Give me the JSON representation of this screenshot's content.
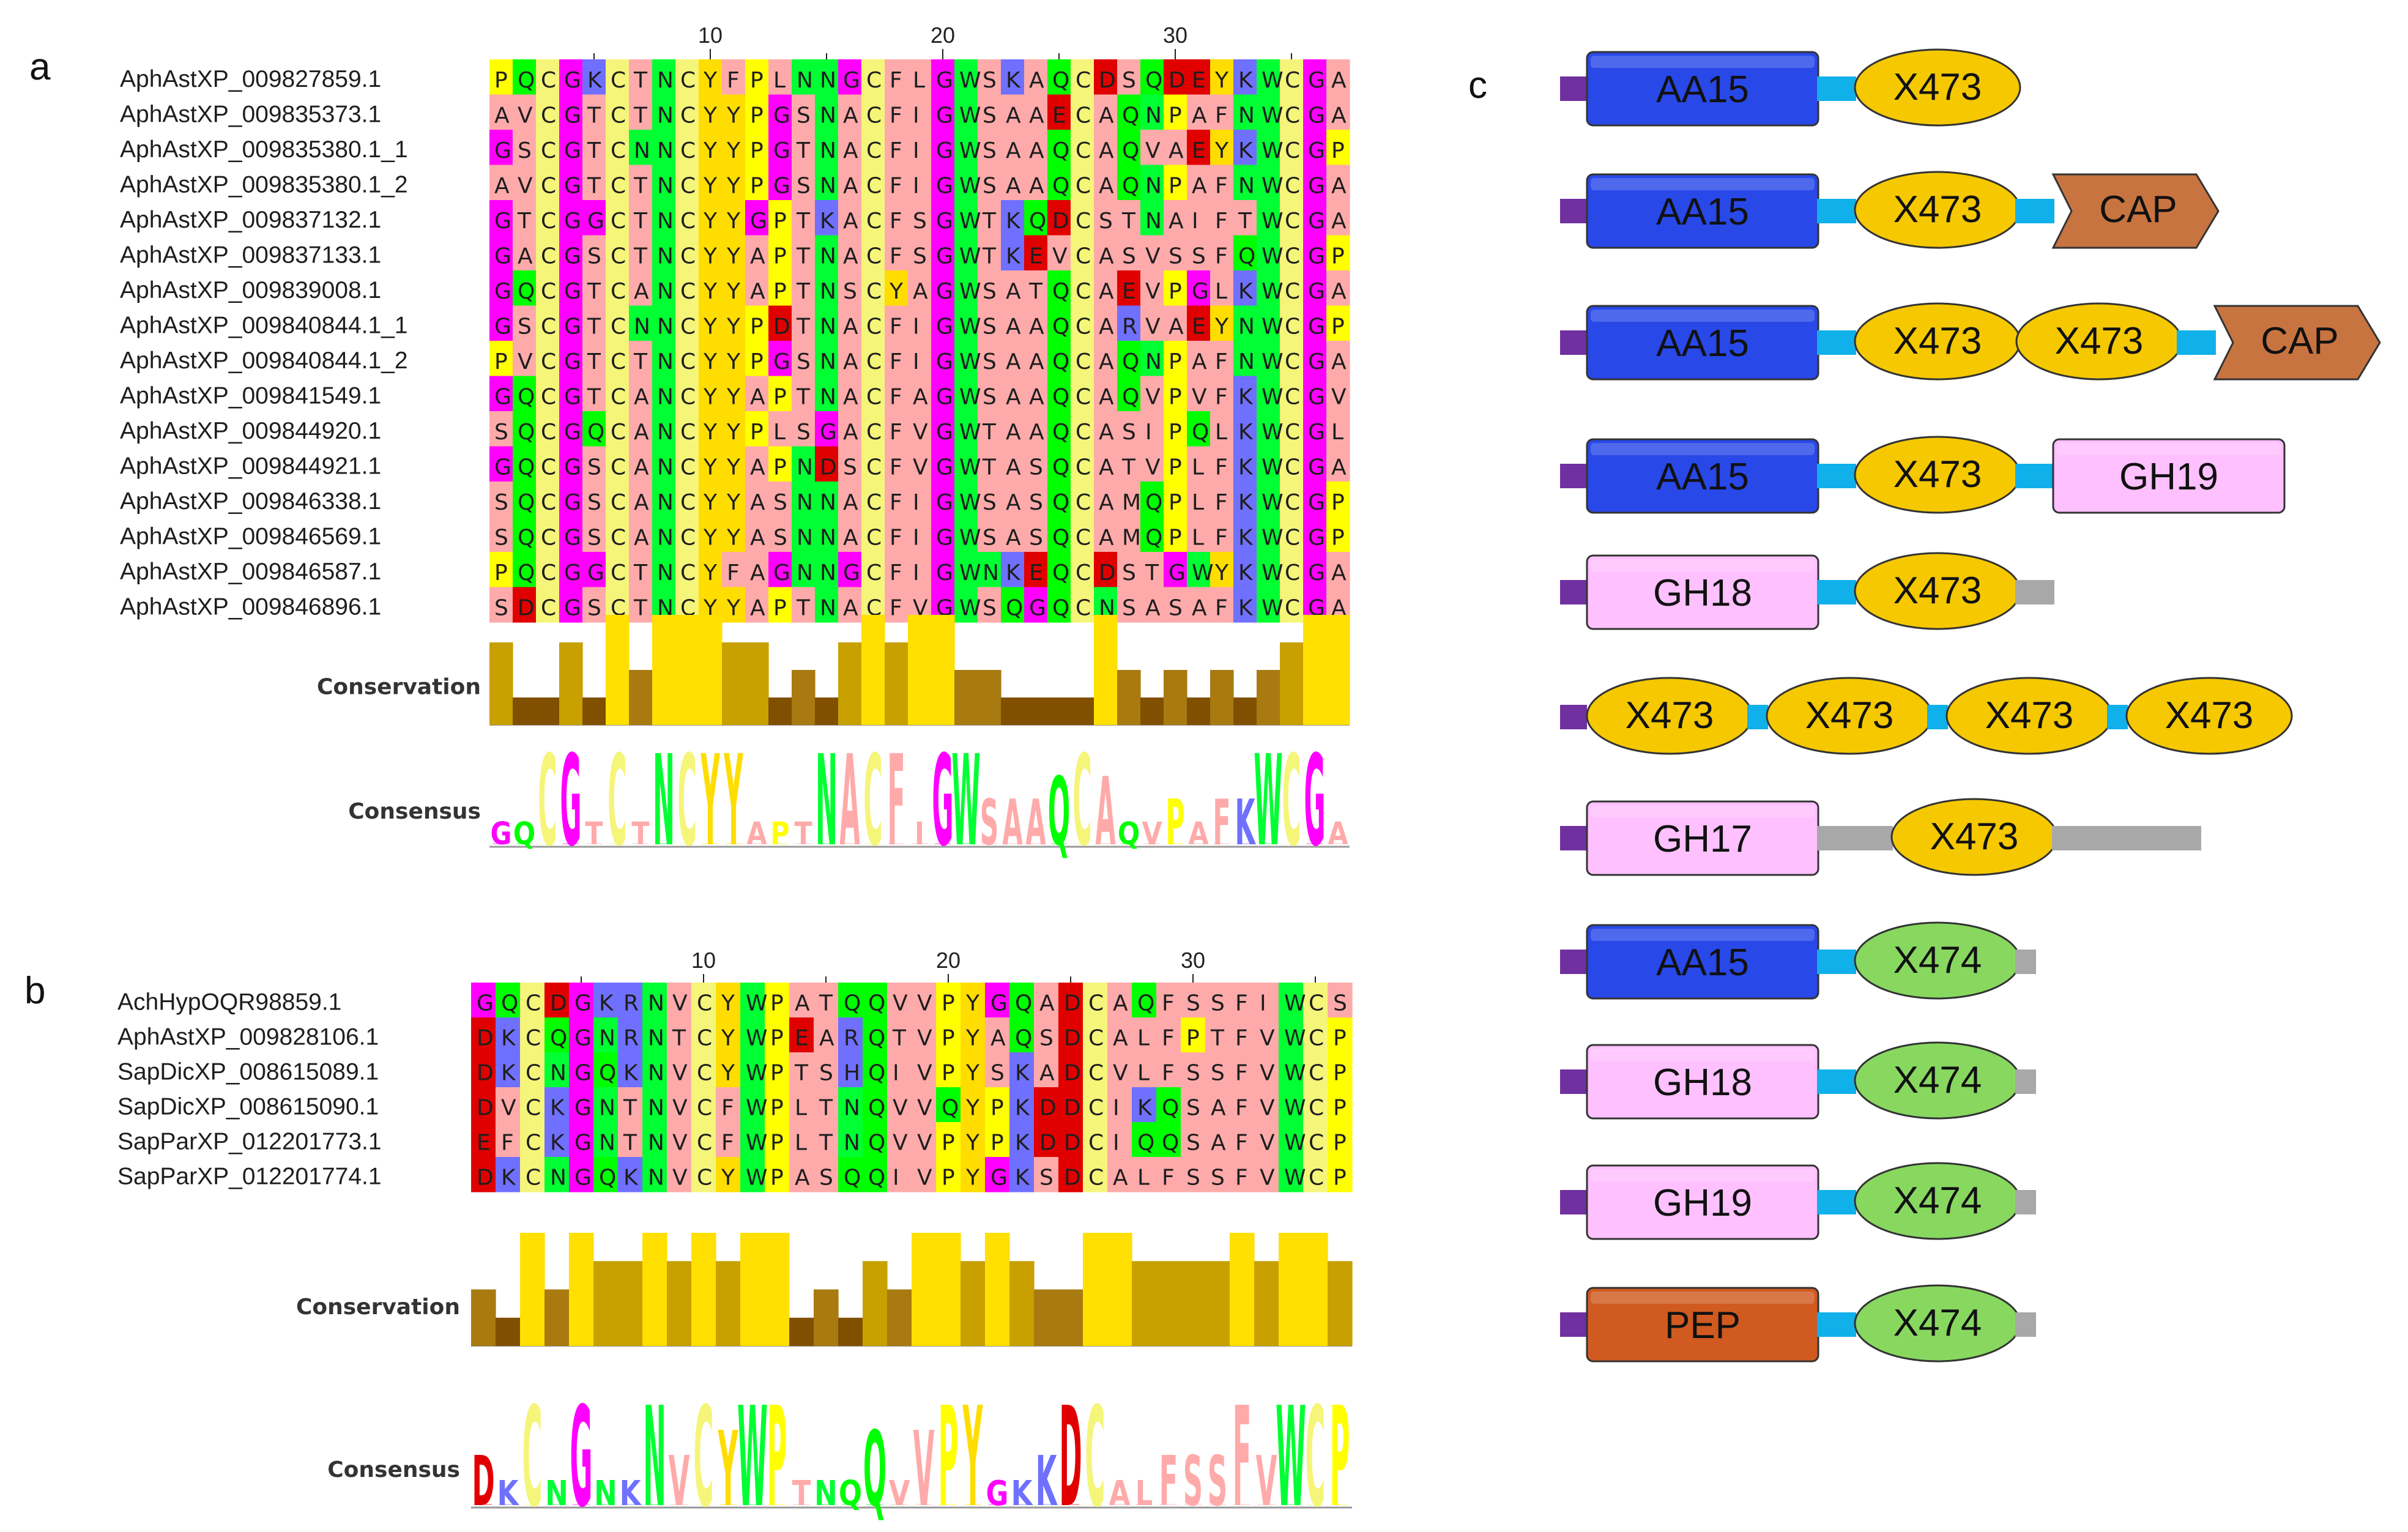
{
  "colors": {
    "G": "#ff00ff",
    "P": "#ffff00",
    "Q": "#00ff00",
    "C": "#f5f57a",
    "K": "#7070ff",
    "T": "#ffaaaa",
    "N": "#00ff33",
    "Y": "#ffdd00",
    "F": "#ffaaaa",
    "L": "#ffaaaa",
    "S": "#ffaaaa",
    "A": "#ffaaaa",
    "D": "#e00000",
    "E": "#e00000",
    "W": "#00ff33",
    "V": "#ffaaaa",
    "I": "#ffaaaa",
    "R": "#7070ff",
    "H": "#7070ff",
    "M": "#ffaaaa",
    "cons_high": "#ffe000",
    "cons_mid": "#c8a000",
    "cons_low": "#805000",
    "AA15": "#2848e8",
    "X473": "#f5c800",
    "CAP": "#c87440",
    "GH19": "#ffc0ff",
    "GH18": "#ffc0ff",
    "GH17": "#ffc0ff",
    "X474": "#88d860",
    "PEP": "#d05a20",
    "linker": "#10b0ea",
    "tail": "#a8a8a8",
    "signal": "#7030a0"
  },
  "panels": {
    "a": {
      "label": "a",
      "ticks": [
        {
          "pos": 10,
          "label": "10"
        },
        {
          "pos": 20,
          "label": "20"
        },
        {
          "pos": 30,
          "label": "30"
        }
      ],
      "sequences": [
        {
          "name": "AphAstXP_009827859.1",
          "seq": "PQCGKCTNCYFPLNNGCFLGWSKAQCDSQDEYKWCGA"
        },
        {
          "name": "AphAstXP_009835373.1",
          "seq": "AVCGTCTNCYYPGSNACFIGWSAAECAQNPAFNWCGA"
        },
        {
          "name": "AphAstXP_009835380.1_1",
          "seq": "GSCGTCNNCYYPGTNACFIGWSAAQCAQVAEYKWCGP"
        },
        {
          "name": "AphAstXP_009835380.1_2",
          "seq": "AVCGTCTNCYYPGSNACFIGWSAAQCAQNPAFNWCGA"
        },
        {
          "name": "AphAstXP_009837132.1",
          "seq": "GTCGGCTNCYYGPTKACFSGWTKQDCSTNAIFTWCGA"
        },
        {
          "name": "AphAstXP_009837133.1",
          "seq": "GACGSCTNCYYAPTNACFSGWTKEVCASVSSFQWCGP"
        },
        {
          "name": "AphAstXP_009839008.1",
          "seq": "GQCGTCANCYYAPTNSCYAGWSATQCAEVPGLKWCGA"
        },
        {
          "name": "AphAstXP_009840844.1_1",
          "seq": "GSCGTCNNCYYPDTNACFIGWSAAQCARVAEYNWCGP"
        },
        {
          "name": "AphAstXP_009840844.1_2",
          "seq": "PVCGTCTNCYYPGSNACFIGWSAAQCAQNPAFNWCGA"
        },
        {
          "name": "AphAstXP_009841549.1",
          "seq": "GQCGTCANCYYAPTNACFAGWSAAQCAQVPVFKWCGV"
        },
        {
          "name": "AphAstXP_009844920.1",
          "seq": "SQCGQCANCYYPLSGACFVGWTAAQCASIPQLKWCGL"
        },
        {
          "name": "AphAstXP_009844921.1",
          "seq": "GQCGSCANCYYAPNDSCFVGWTASQCATVPLFKWCGA"
        },
        {
          "name": "AphAstXP_009846338.1",
          "seq": "SQCGSCANCYYASNNACFIGWSASQCAMQPLFKWCGP"
        },
        {
          "name": "AphAstXP_009846569.1",
          "seq": "SQCGSCANCYYASNNACFIGWSASQCAMQPLFKWCGP"
        },
        {
          "name": "AphAstXP_009846587.1",
          "seq": "PQCGGCTNCYFAGNNGCFIGWNKEQCDSTGWYKWCGA"
        },
        {
          "name": "AphAstXP_009846896.1",
          "seq": "SDCGSCTNCYYAPTNACFVGWSQGQCNSASAFKWCGA"
        }
      ],
      "conservation_label": "Conservation",
      "conservation": [
        3,
        1,
        1,
        3,
        1,
        4,
        2,
        4,
        4,
        4,
        3,
        3,
        1,
        2,
        1,
        3,
        4,
        3,
        4,
        4,
        2,
        2,
        1,
        1,
        1,
        1,
        4,
        2,
        1,
        2,
        1,
        2,
        1,
        2,
        3,
        4,
        4
      ],
      "consensus_label": "Consensus",
      "consensus": [
        "G",
        "Q",
        "C",
        "G",
        "T",
        "C",
        "T",
        "N",
        "C",
        "Y",
        "Y",
        "A",
        "P",
        "T",
        "N",
        "A",
        "C",
        "F",
        "I",
        "G",
        "W",
        "S",
        "A",
        "A",
        "Q",
        "C",
        "A",
        "Q",
        "V",
        "P",
        "A",
        "F",
        "K",
        "W",
        "C",
        "G",
        "A"
      ],
      "consensus_h": [
        1,
        1,
        4,
        4,
        1,
        4,
        1,
        4,
        4,
        4,
        4,
        1,
        1,
        1,
        4,
        4,
        4,
        4,
        1,
        4,
        4,
        2,
        2,
        2,
        3,
        4,
        3,
        1,
        1,
        2,
        1,
        2,
        2,
        4,
        4,
        4,
        1
      ]
    },
    "b": {
      "label": "b",
      "ticks": [
        {
          "pos": 10,
          "label": "10"
        },
        {
          "pos": 20,
          "label": "20"
        },
        {
          "pos": 30,
          "label": "30"
        }
      ],
      "sequences": [
        {
          "name": "AchHypOQR98859.1",
          "seq": "GQCDGKRNVCYWPATQQVVPYGQADCAQFSSFIWCS"
        },
        {
          "name": "AphAstXP_009828106.1",
          "seq": "DKCQGNRNTCYWPEARQTVPYAQSDCALFPTFVWCP"
        },
        {
          "name": "SapDicXP_008615089.1",
          "seq": "DKCNGQKNVCYWPTSHQIVPYSKADCVLFSSFVWCP"
        },
        {
          "name": "SapDicXP_008615090.1",
          "seq": "DVCKGNTNVCFWPLTNQVVQYPKDDCIKQSAFVWCP"
        },
        {
          "name": "SapParXP_012201773.1",
          "seq": "EFCKGNTNVCFWPLTNQVVPYPKDDCIQQSAFVWCP"
        },
        {
          "name": "SapParXP_012201774.1",
          "seq": "DKCNGQKNVCYWPASQQIVPYGKSDCALFSSFVWCP"
        }
      ],
      "conservation_label": "Conservation",
      "conservation": [
        2,
        1,
        4,
        2,
        4,
        3,
        3,
        4,
        3,
        4,
        3,
        4,
        4,
        1,
        2,
        1,
        3,
        2,
        4,
        4,
        3,
        4,
        3,
        2,
        2,
        4,
        4,
        3,
        3,
        3,
        3,
        4,
        3,
        4,
        4,
        3
      ],
      "consensus_label": "Consensus",
      "consensus": [
        "D",
        "K",
        "C",
        "N",
        "G",
        "N",
        "K",
        "N",
        "V",
        "C",
        "Y",
        "W",
        "P",
        "T",
        "N",
        "Q",
        "Q",
        "V",
        "V",
        "P",
        "Y",
        "G",
        "K",
        "K",
        "D",
        "C",
        "A",
        "L",
        "F",
        "S",
        "S",
        "F",
        "V",
        "W",
        "C",
        "P"
      ],
      "consensus_h": [
        2,
        1,
        4,
        1,
        4,
        1,
        1,
        4,
        2,
        4,
        3,
        4,
        4,
        1,
        1,
        1,
        3,
        1,
        3,
        4,
        4,
        1,
        1,
        2,
        4,
        4,
        1,
        1,
        2,
        2,
        2,
        4,
        2,
        4,
        4,
        4
      ]
    }
  },
  "panel_c": {
    "label": "c",
    "architectures": [
      [
        {
          "type": "signal"
        },
        {
          "type": "box",
          "label": "AA15",
          "len": 6
        },
        {
          "type": "linker",
          "len": 1
        },
        {
          "type": "ellipse",
          "label": "X473"
        }
      ],
      [
        {
          "type": "signal"
        },
        {
          "type": "box",
          "label": "AA15",
          "len": 6
        },
        {
          "type": "linker",
          "len": 1
        },
        {
          "type": "ellipse",
          "label": "X473"
        },
        {
          "type": "linker",
          "len": 1
        },
        {
          "type": "hex",
          "label": "CAP"
        }
      ],
      [
        {
          "type": "signal"
        },
        {
          "type": "box",
          "label": "AA15",
          "len": 6
        },
        {
          "type": "linker",
          "len": 1
        },
        {
          "type": "ellipse",
          "label": "X473"
        },
        {
          "type": "ellipse",
          "label": "X473"
        },
        {
          "type": "linker",
          "len": 1
        },
        {
          "type": "hex",
          "label": "CAP"
        }
      ],
      [
        {
          "type": "signal"
        },
        {
          "type": "box",
          "label": "AA15",
          "len": 6
        },
        {
          "type": "linker",
          "len": 1
        },
        {
          "type": "ellipse",
          "label": "X473"
        },
        {
          "type": "linker",
          "len": 1
        },
        {
          "type": "box",
          "label": "GH19",
          "len": 6
        }
      ],
      [
        {
          "type": "signal"
        },
        {
          "type": "box",
          "label": "GH18",
          "len": 6
        },
        {
          "type": "linker",
          "len": 1
        },
        {
          "type": "ellipse",
          "label": "X473"
        },
        {
          "type": "tail",
          "len": 1
        }
      ],
      [
        {
          "type": "signal"
        },
        {
          "type": "ellipse",
          "label": "X473"
        },
        {
          "type": "linker",
          "len": 0.5
        },
        {
          "type": "ellipse",
          "label": "X473"
        },
        {
          "type": "linker",
          "len": 0.5
        },
        {
          "type": "ellipse",
          "label": "X473"
        },
        {
          "type": "linker",
          "len": 0.5
        },
        {
          "type": "ellipse",
          "label": "X473"
        }
      ],
      [
        {
          "type": "signal"
        },
        {
          "type": "box",
          "label": "GH17",
          "len": 6
        },
        {
          "type": "tail",
          "len": 2
        },
        {
          "type": "ellipse",
          "label": "X473"
        },
        {
          "type": "tail",
          "len": 4
        }
      ],
      [
        {
          "type": "signal"
        },
        {
          "type": "box",
          "label": "AA15",
          "len": 6
        },
        {
          "type": "linker",
          "len": 1
        },
        {
          "type": "ellipse",
          "label": "X474"
        },
        {
          "type": "tail",
          "len": 0.5
        }
      ],
      [
        {
          "type": "signal"
        },
        {
          "type": "box",
          "label": "GH18",
          "len": 6
        },
        {
          "type": "linker",
          "len": 1
        },
        {
          "type": "ellipse",
          "label": "X474"
        },
        {
          "type": "tail",
          "len": 0.5
        }
      ],
      [
        {
          "type": "signal"
        },
        {
          "type": "box",
          "label": "GH19",
          "len": 6
        },
        {
          "type": "linker",
          "len": 1
        },
        {
          "type": "ellipse",
          "label": "X474"
        },
        {
          "type": "tail",
          "len": 0.5
        }
      ],
      [
        {
          "type": "signal"
        },
        {
          "type": "box",
          "label": "PEP",
          "len": 6
        },
        {
          "type": "linker",
          "len": 1
        },
        {
          "type": "ellipse",
          "label": "X474"
        },
        {
          "type": "tail",
          "len": 0.5
        }
      ]
    ]
  }
}
